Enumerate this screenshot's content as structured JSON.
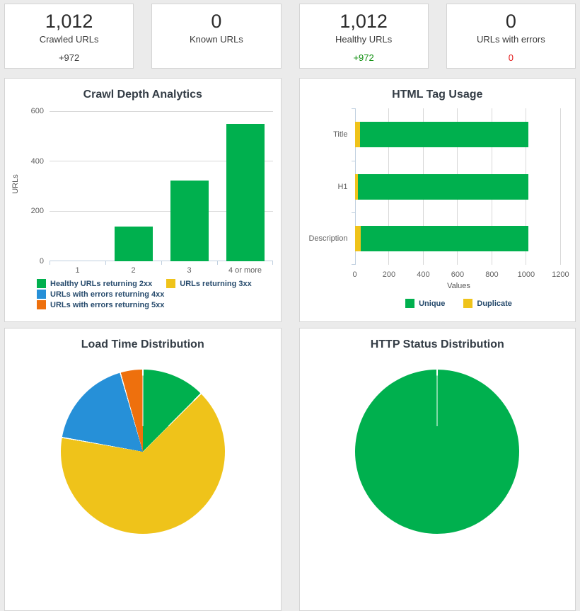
{
  "page": {
    "background": "#ebebeb",
    "card_background": "#ffffff",
    "card_border": "#d4d4d4"
  },
  "palette": {
    "green": "#00b04e",
    "yellow": "#efc31a",
    "blue": "#2690d8",
    "orange": "#ee700d",
    "change_neutral": "#3a3a3a",
    "change_positive": "#0f8f0f",
    "change_negative": "#e21717",
    "axis_label": "#606060",
    "axis_title": "#555555",
    "axis_line": "#c0d0e0",
    "gridline": "#d8d8d8",
    "legend_text": "#274b6d",
    "chart_title": "#333c45"
  },
  "stat_cards": [
    {
      "value": "1,012",
      "label": "Crawled URLs",
      "change": "+972",
      "change_color": "neutral"
    },
    {
      "value": "0",
      "label": "Known URLs",
      "change": "",
      "change_color": "neutral"
    },
    {
      "value": "1,012",
      "label": "Healthy URLs",
      "change": "+972",
      "change_color": "positive"
    },
    {
      "value": "0",
      "label": "URLs with errors",
      "change": "0",
      "change_color": "negative"
    }
  ],
  "chart_data": [
    {
      "type": "bar",
      "title": "Crawl Depth Analytics",
      "ylabel": "URLs",
      "xlabel": "",
      "categories": [
        "1",
        "2",
        "3",
        "4 or more"
      ],
      "yticks": [
        0,
        200,
        400,
        600
      ],
      "ymax": 618,
      "grid": true,
      "legend_position": "bottom-left",
      "series": [
        {
          "name": "Healthy URLs returning 2xx",
          "color_key": "green",
          "values": [
            1,
            138,
            322,
            551
          ]
        },
        {
          "name": "URLs returning 3xx",
          "color_key": "yellow",
          "values": [
            0,
            0,
            0,
            0
          ]
        },
        {
          "name": "URLs with errors returning 4xx",
          "color_key": "blue",
          "values": [
            0,
            0,
            0,
            0
          ]
        },
        {
          "name": "URLs with errors returning 5xx",
          "color_key": "orange",
          "values": [
            0,
            0,
            0,
            0
          ]
        }
      ]
    },
    {
      "type": "bar",
      "orientation": "horizontal",
      "stacked": true,
      "title": "HTML Tag Usage",
      "xlabel": "Values",
      "ylabel": "",
      "categories": [
        "Title",
        "H1",
        "Description"
      ],
      "xticks": [
        0,
        200,
        400,
        600,
        800,
        1000,
        1200
      ],
      "xmax": 1213,
      "grid": true,
      "legend_position": "bottom-center",
      "legend_reversed": true,
      "series": [
        {
          "name": "Duplicate",
          "color_key": "yellow",
          "values": [
            30,
            20,
            34
          ]
        },
        {
          "name": "Unique",
          "color_key": "green",
          "values": [
            982,
            992,
            978
          ]
        }
      ]
    },
    {
      "type": "pie",
      "title": "Load Time Distribution",
      "clipped_by_viewport": true,
      "slices": [
        {
          "color_key": "green",
          "start_deg": 0,
          "end_deg": 45,
          "percent_estimate": 12.5
        },
        {
          "color_key": "yellow",
          "start_deg": 45,
          "end_deg": 280,
          "percent_estimate": 65.3
        },
        {
          "color_key": "blue",
          "start_deg": 280,
          "end_deg": 344,
          "percent_estimate": 17.8
        },
        {
          "color_key": "orange",
          "start_deg": 344,
          "end_deg": 360,
          "percent_estimate": 4.4
        }
      ]
    },
    {
      "type": "pie",
      "title": "HTTP Status Distribution",
      "clipped_by_viewport": true,
      "slices": [
        {
          "color_key": "green",
          "start_deg": 0,
          "end_deg": 360,
          "percent_estimate": 100
        }
      ]
    }
  ]
}
